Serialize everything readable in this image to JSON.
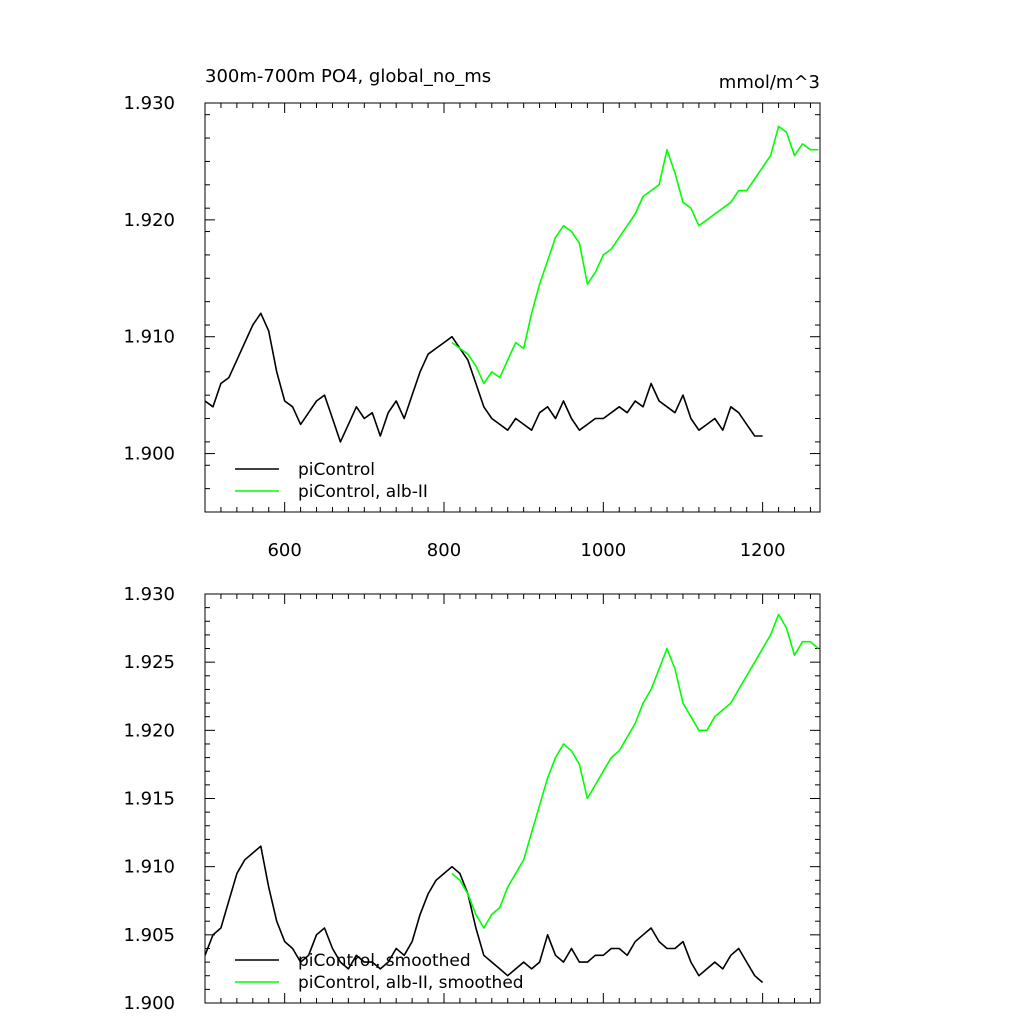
{
  "chart_data": [
    {
      "type": "line",
      "title": "300m-700m PO4, global_no_ms",
      "units": "mmol/m^3",
      "xlim": [
        500,
        1272
      ],
      "ylim": [
        1.895,
        1.93
      ],
      "x_ticks": [
        600,
        800,
        1000,
        1200
      ],
      "x_ticklabels": [
        "600",
        "800",
        "1000",
        "1200"
      ],
      "y_ticks": [
        1.9,
        1.91,
        1.92,
        1.93
      ],
      "y_ticklabels": [
        "1.900",
        "1.910",
        "1.920",
        "1.930"
      ],
      "legend_position": "bottom-left",
      "series": [
        {
          "name": "piControl",
          "color": "#000000",
          "x": [
            500,
            510,
            520,
            530,
            540,
            550,
            560,
            570,
            580,
            590,
            600,
            610,
            620,
            630,
            640,
            650,
            660,
            670,
            680,
            690,
            700,
            710,
            720,
            730,
            740,
            750,
            760,
            770,
            780,
            790,
            800,
            810,
            820,
            830,
            840,
            850,
            860,
            870,
            880,
            890,
            900,
            910,
            920,
            930,
            940,
            950,
            960,
            970,
            980,
            990,
            1000,
            1010,
            1020,
            1030,
            1040,
            1050,
            1060,
            1070,
            1080,
            1090,
            1100,
            1110,
            1120,
            1130,
            1140,
            1150,
            1160,
            1170,
            1180,
            1190,
            1200
          ],
          "y": [
            1.9045,
            1.904,
            1.906,
            1.9065,
            1.908,
            1.9095,
            1.911,
            1.912,
            1.9105,
            1.907,
            1.9045,
            1.904,
            1.9025,
            1.9035,
            1.9045,
            1.905,
            1.903,
            1.901,
            1.9025,
            1.904,
            1.903,
            1.9035,
            1.9015,
            1.9035,
            1.9045,
            1.903,
            1.905,
            1.907,
            1.9085,
            1.909,
            1.9095,
            1.91,
            1.909,
            1.908,
            1.906,
            1.904,
            1.903,
            1.9025,
            1.902,
            1.903,
            1.9025,
            1.902,
            1.9035,
            1.904,
            1.903,
            1.9045,
            1.903,
            1.902,
            1.9025,
            1.903,
            1.903,
            1.9035,
            1.904,
            1.9035,
            1.9045,
            1.904,
            1.906,
            1.9045,
            1.904,
            1.9035,
            1.905,
            1.903,
            1.902,
            1.9025,
            1.903,
            1.902,
            1.904,
            1.9035,
            1.9025,
            1.9015,
            1.9015
          ]
        },
        {
          "name": "piControl, alb-II",
          "color": "#00ff00",
          "x": [
            810,
            820,
            830,
            840,
            850,
            860,
            870,
            880,
            890,
            900,
            910,
            920,
            930,
            940,
            950,
            960,
            970,
            980,
            990,
            1000,
            1010,
            1020,
            1030,
            1040,
            1050,
            1060,
            1070,
            1080,
            1090,
            1100,
            1110,
            1120,
            1130,
            1140,
            1150,
            1160,
            1170,
            1180,
            1190,
            1200,
            1210,
            1220,
            1230,
            1240,
            1250,
            1260,
            1270
          ],
          "y": [
            1.9095,
            1.909,
            1.9085,
            1.9075,
            1.906,
            1.907,
            1.9065,
            1.908,
            1.9095,
            1.909,
            1.912,
            1.9145,
            1.9165,
            1.9185,
            1.9195,
            1.919,
            1.918,
            1.9145,
            1.9155,
            1.917,
            1.9175,
            1.9185,
            1.9195,
            1.9205,
            1.922,
            1.9225,
            1.923,
            1.926,
            1.924,
            1.9215,
            1.921,
            1.9195,
            1.92,
            1.9205,
            1.921,
            1.9215,
            1.9225,
            1.9225,
            1.9235,
            1.9245,
            1.9255,
            1.928,
            1.9275,
            1.9255,
            1.9265,
            1.926,
            1.926
          ]
        }
      ]
    },
    {
      "type": "line",
      "xlim": [
        500,
        1272
      ],
      "ylim": [
        1.9,
        1.93
      ],
      "x_ticks": [
        600,
        800,
        1000,
        1200
      ],
      "y_ticks": [
        1.9,
        1.905,
        1.91,
        1.915,
        1.92,
        1.925,
        1.93
      ],
      "y_ticklabels": [
        "1.900",
        "1.905",
        "1.910",
        "1.915",
        "1.920",
        "1.925",
        "1.930"
      ],
      "legend_position": "bottom-left",
      "series": [
        {
          "name": "piControl, smoothed",
          "color": "#000000",
          "x": [
            500,
            510,
            520,
            530,
            540,
            550,
            560,
            570,
            580,
            590,
            600,
            610,
            620,
            630,
            640,
            650,
            660,
            670,
            680,
            690,
            700,
            710,
            720,
            730,
            740,
            750,
            760,
            770,
            780,
            790,
            800,
            810,
            820,
            830,
            840,
            850,
            860,
            870,
            880,
            890,
            900,
            910,
            920,
            930,
            940,
            950,
            960,
            970,
            980,
            990,
            1000,
            1010,
            1020,
            1030,
            1040,
            1050,
            1060,
            1070,
            1080,
            1090,
            1100,
            1110,
            1120,
            1130,
            1140,
            1150,
            1160,
            1170,
            1180,
            1190,
            1200
          ],
          "y": [
            1.9035,
            1.905,
            1.9055,
            1.9075,
            1.9095,
            1.9105,
            1.911,
            1.9115,
            1.9085,
            1.906,
            1.9045,
            1.904,
            1.903,
            1.9035,
            1.905,
            1.9055,
            1.904,
            1.903,
            1.9025,
            1.9035,
            1.903,
            1.903,
            1.9025,
            1.903,
            1.904,
            1.9035,
            1.9045,
            1.9065,
            1.908,
            1.909,
            1.9095,
            1.91,
            1.9095,
            1.908,
            1.9055,
            1.9035,
            1.903,
            1.9025,
            1.902,
            1.9025,
            1.903,
            1.9025,
            1.903,
            1.905,
            1.9035,
            1.903,
            1.904,
            1.903,
            1.903,
            1.9035,
            1.9035,
            1.904,
            1.904,
            1.9035,
            1.9045,
            1.905,
            1.9055,
            1.9045,
            1.904,
            1.904,
            1.9045,
            1.903,
            1.902,
            1.9025,
            1.903,
            1.9025,
            1.9035,
            1.904,
            1.903,
            1.902,
            1.9015
          ]
        },
        {
          "name": "piControl, alb-II, smoothed",
          "color": "#00ff00",
          "x": [
            810,
            820,
            830,
            840,
            850,
            860,
            870,
            880,
            890,
            900,
            910,
            920,
            930,
            940,
            950,
            960,
            970,
            980,
            990,
            1000,
            1010,
            1020,
            1030,
            1040,
            1050,
            1060,
            1070,
            1080,
            1090,
            1100,
            1110,
            1120,
            1130,
            1140,
            1150,
            1160,
            1170,
            1180,
            1190,
            1200,
            1210,
            1220,
            1230,
            1240,
            1250,
            1260,
            1270
          ],
          "y": [
            1.9095,
            1.909,
            1.908,
            1.9065,
            1.9055,
            1.9065,
            1.907,
            1.9085,
            1.9095,
            1.9105,
            1.9125,
            1.9145,
            1.9165,
            1.918,
            1.919,
            1.9185,
            1.9175,
            1.915,
            1.916,
            1.917,
            1.918,
            1.9185,
            1.9195,
            1.9205,
            1.922,
            1.923,
            1.9245,
            1.926,
            1.9245,
            1.922,
            1.921,
            1.92,
            1.92,
            1.921,
            1.9215,
            1.922,
            1.923,
            1.924,
            1.925,
            1.926,
            1.927,
            1.9285,
            1.9275,
            1.9255,
            1.9265,
            1.9265,
            1.926
          ]
        }
      ]
    }
  ]
}
